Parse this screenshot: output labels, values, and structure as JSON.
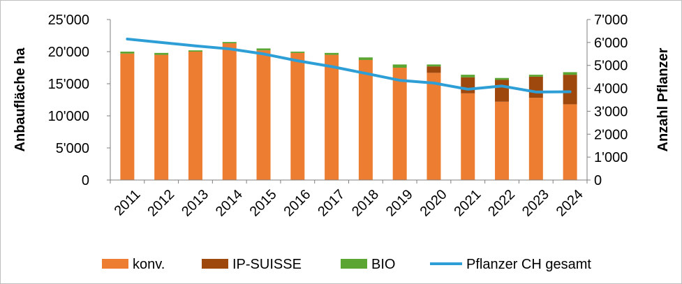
{
  "chart_data": {
    "type": "bar",
    "stacked": true,
    "categories": [
      "2011",
      "2012",
      "2013",
      "2014",
      "2015",
      "2016",
      "2017",
      "2018",
      "2019",
      "2020",
      "2021",
      "2022",
      "2023",
      "2024"
    ],
    "series": [
      {
        "name": "konv.",
        "axis": "left",
        "color": "#ED7D31",
        "values": [
          19700,
          19500,
          20000,
          21300,
          20200,
          19800,
          19500,
          18700,
          17500,
          16700,
          13500,
          12200,
          12800,
          11800
        ]
      },
      {
        "name": "IP-SUISSE",
        "axis": "left",
        "color": "#9E480E",
        "values": [
          0,
          0,
          0,
          0,
          0,
          0,
          0,
          0,
          0,
          1000,
          2500,
          3400,
          3300,
          4600
        ]
      },
      {
        "name": "BIO",
        "axis": "left",
        "color": "#5BA532",
        "values": [
          300,
          300,
          200,
          200,
          300,
          200,
          300,
          400,
          500,
          300,
          400,
          300,
          300,
          400
        ]
      },
      {
        "name": "Pflanzer CH gesamt",
        "axis": "right",
        "type": "line",
        "color": "#2E9FD6",
        "values": [
          6150,
          6000,
          5850,
          5720,
          5500,
          5200,
          4950,
          4650,
          4350,
          4230,
          3960,
          4100,
          3840,
          3850
        ]
      }
    ],
    "ylabel": "Anbaufläche ha",
    "y2label": "Anzahl Pflanzer",
    "ylim": [
      0,
      25000
    ],
    "y2lim": [
      0,
      7000
    ],
    "yticks": [
      "0",
      "5'000",
      "10'000",
      "15'000",
      "20'000",
      "25'000"
    ],
    "y2ticks": [
      "0",
      "1'000",
      "2'000",
      "3'000",
      "4'000",
      "5'000",
      "6'000",
      "7'000"
    ],
    "grid": false,
    "legend_position": "bottom"
  }
}
